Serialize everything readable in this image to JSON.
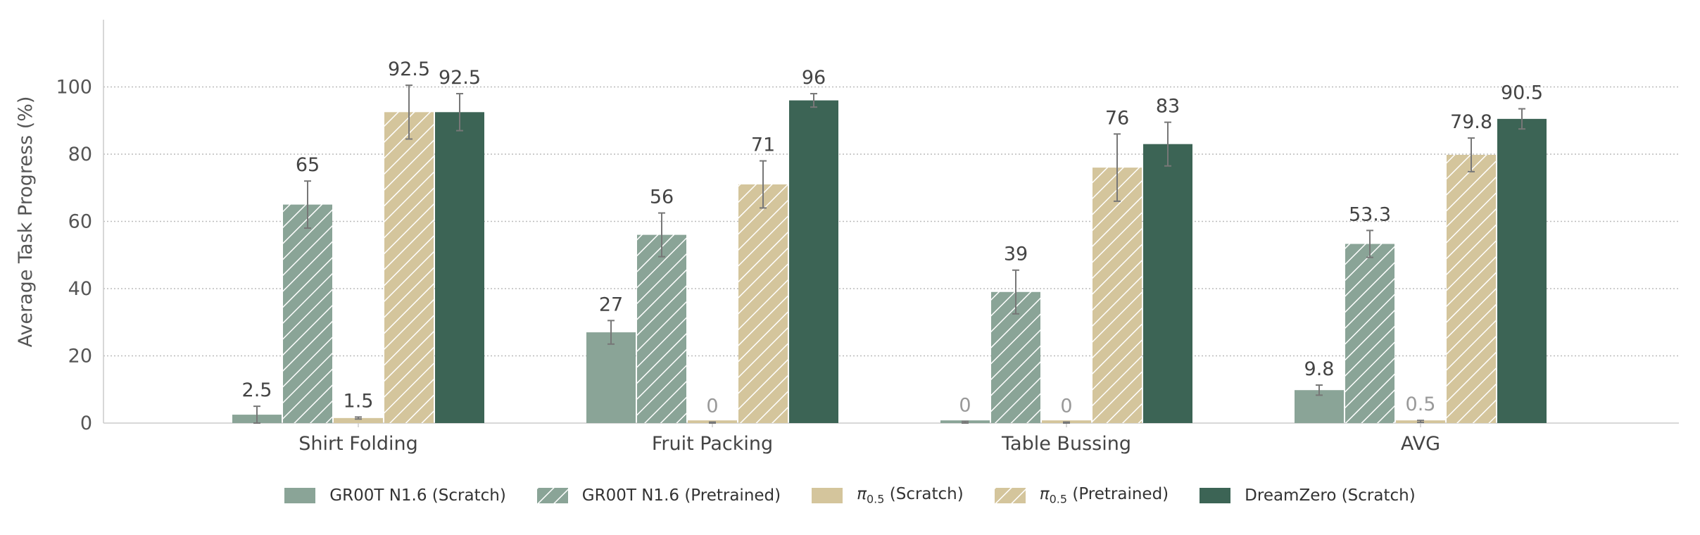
{
  "chart_data": {
    "type": "bar",
    "ylabel": "Average Task Progress (%)",
    "xlabel": "",
    "ylim": [
      0,
      120
    ],
    "yticks": [
      0,
      20,
      40,
      60,
      80,
      100
    ],
    "grid": "horizontal-dotted",
    "legend_position": "bottom-center",
    "categories": [
      "Shirt Folding",
      "Fruit Packing",
      "Table Bussing",
      "AVG"
    ],
    "series": [
      {
        "name": "GR00T N1.6 (Scratch)",
        "color": "#8aa497",
        "pattern": "solid",
        "values": [
          2.5,
          27,
          0,
          9.8
        ],
        "labels": [
          "2.5",
          "27",
          "0",
          "9.8"
        ],
        "errors": [
          2.5,
          3.5,
          0.5,
          1.5
        ]
      },
      {
        "name": "GR00T N1.6 (Pretrained)",
        "color": "#8aa497",
        "pattern": "hatched",
        "values": [
          65,
          56,
          39,
          53.3
        ],
        "labels": [
          "65",
          "56",
          "39",
          "53.3"
        ],
        "errors": [
          7,
          6.5,
          6.5,
          4
        ]
      },
      {
        "name": "π0.5 (Scratch)",
        "name_base": "π",
        "name_sub": "0.5",
        "name_suffix": " (Scratch)",
        "color": "#d4c59c",
        "pattern": "solid",
        "values": [
          1.5,
          0,
          0,
          0.5
        ],
        "labels": [
          "1.5",
          "0",
          "0",
          "0.5"
        ],
        "errors": [
          0.3,
          0.3,
          0.3,
          0.3
        ]
      },
      {
        "name": "π0.5 (Pretrained)",
        "name_base": "π",
        "name_sub": "0.5",
        "name_suffix": " (Pretrained)",
        "color": "#d4c59c",
        "pattern": "hatched",
        "values": [
          92.5,
          71,
          76,
          79.8
        ],
        "labels": [
          "92.5",
          "71",
          "76",
          "79.8"
        ],
        "errors": [
          8,
          7,
          10,
          5
        ]
      },
      {
        "name": "DreamZero (Scratch)",
        "color": "#3c6455",
        "pattern": "solid",
        "values": [
          92.5,
          96,
          83,
          90.5
        ],
        "labels": [
          "92.5",
          "96",
          "83",
          "90.5"
        ],
        "errors": [
          5.5,
          2,
          6.5,
          3
        ]
      }
    ]
  }
}
